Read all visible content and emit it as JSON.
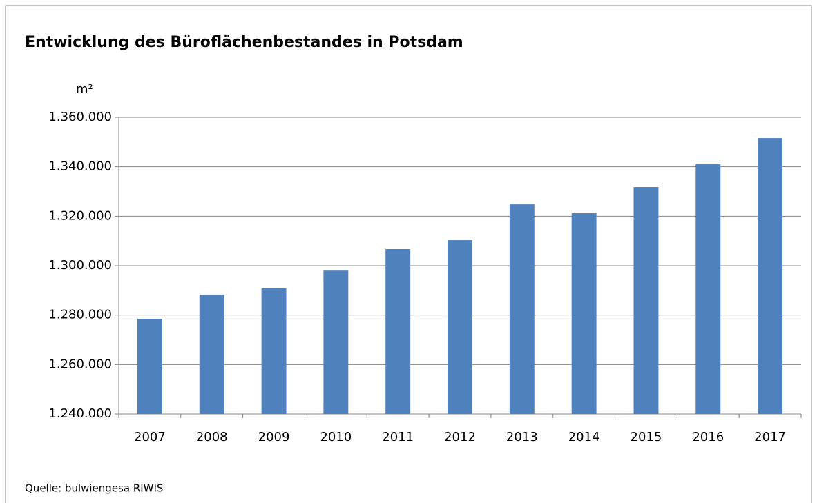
{
  "chart_data": {
    "type": "bar",
    "title": "Entwicklung des Büroflächenbestandes in Potsdam",
    "y_label": "m²",
    "source": "Quelle: bulwiengesa RIWIS",
    "categories": [
      "2007",
      "2008",
      "2009",
      "2010",
      "2011",
      "2012",
      "2013",
      "2014",
      "2015",
      "2016",
      "2017"
    ],
    "values": [
      1278500,
      1288300,
      1290800,
      1298000,
      1306700,
      1310300,
      1324800,
      1321200,
      1331800,
      1341000,
      1351600
    ],
    "color": "#4f81bd",
    "ylim": [
      1240000,
      1360000
    ],
    "yticks": [
      {
        "value": 1240000,
        "label": "1.240.000"
      },
      {
        "value": 1260000,
        "label": "1.260.000"
      },
      {
        "value": 1280000,
        "label": "1.280.000"
      },
      {
        "value": 1300000,
        "label": "1.300.000"
      },
      {
        "value": 1320000,
        "label": "1.320.000"
      },
      {
        "value": 1340000,
        "label": "1.340.000"
      },
      {
        "value": 1360000,
        "label": "1.360.000"
      }
    ],
    "grid": true
  }
}
